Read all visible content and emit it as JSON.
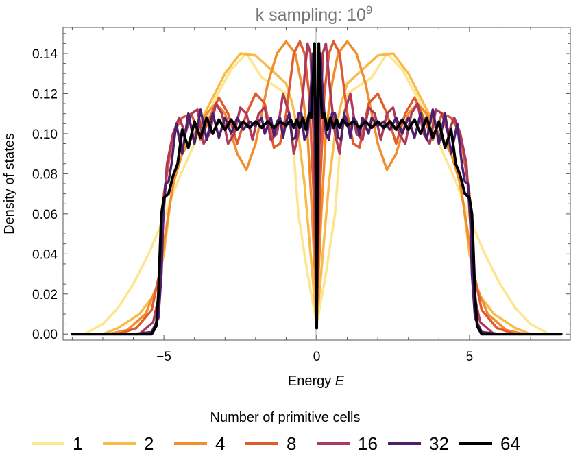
{
  "chart_data": {
    "type": "line",
    "title": "k sampling: 10",
    "title_superscript": "9",
    "xlabel": "Energy ",
    "xlabel_italic": "E",
    "ylabel": "Density of states",
    "xlim": [
      -8.3,
      8.3
    ],
    "ylim": [
      -0.003,
      0.153
    ],
    "x_ticks": [
      -5,
      0,
      5
    ],
    "x_tick_labels": [
      "−5",
      "0",
      "5"
    ],
    "y_ticks": [
      0.0,
      0.02,
      0.04,
      0.06,
      0.08,
      0.1,
      0.12,
      0.14
    ],
    "y_tick_labels": [
      "0.00",
      "0.02",
      "0.04",
      "0.06",
      "0.08",
      "0.10",
      "0.12",
      "0.14"
    ],
    "grid": false,
    "legend_title": "Number of primitive cells",
    "legend_position": "bottom",
    "series": [
      {
        "name": "1",
        "color": "#fde68e",
        "points": [
          [
            0,
            0.005
          ],
          [
            0.3,
            0.03
          ],
          [
            0.6,
            0.06
          ],
          [
            0.8,
            0.1
          ],
          [
            1.0,
            0.12
          ],
          [
            1.3,
            0.123
          ],
          [
            1.8,
            0.128
          ],
          [
            2.3,
            0.14
          ],
          [
            2.8,
            0.132
          ],
          [
            3.3,
            0.118
          ],
          [
            4.0,
            0.095
          ],
          [
            4.5,
            0.078
          ],
          [
            5.0,
            0.058
          ],
          [
            5.5,
            0.04
          ],
          [
            6.0,
            0.025
          ],
          [
            6.5,
            0.013
          ],
          [
            7.0,
            0.005
          ],
          [
            7.6,
            0.0
          ],
          [
            8.0,
            0.0
          ]
        ]
      },
      {
        "name": "2",
        "color": "#f8bb4a",
        "points": [
          [
            0,
            0.005
          ],
          [
            0.2,
            0.04
          ],
          [
            0.4,
            0.075
          ],
          [
            0.6,
            0.1
          ],
          [
            0.8,
            0.115
          ],
          [
            1.0,
            0.125
          ],
          [
            1.5,
            0.132
          ],
          [
            2.0,
            0.139
          ],
          [
            2.5,
            0.14
          ],
          [
            3.0,
            0.13
          ],
          [
            3.5,
            0.115
          ],
          [
            4.0,
            0.1
          ],
          [
            4.5,
            0.09
          ],
          [
            4.8,
            0.065
          ],
          [
            5.0,
            0.04
          ],
          [
            5.3,
            0.02
          ],
          [
            5.8,
            0.01
          ],
          [
            6.5,
            0.003
          ],
          [
            7.0,
            0.0
          ],
          [
            8.0,
            0.0
          ]
        ]
      },
      {
        "name": "4",
        "color": "#f18d2b",
        "points": [
          [
            0,
            0.01
          ],
          [
            0.15,
            0.06
          ],
          [
            0.3,
            0.1
          ],
          [
            0.5,
            0.125
          ],
          [
            0.7,
            0.14
          ],
          [
            1.0,
            0.146
          ],
          [
            1.3,
            0.14
          ],
          [
            1.6,
            0.125
          ],
          [
            2.0,
            0.095
          ],
          [
            2.3,
            0.082
          ],
          [
            2.6,
            0.09
          ],
          [
            3.0,
            0.11
          ],
          [
            3.3,
            0.115
          ],
          [
            3.6,
            0.11
          ],
          [
            4.0,
            0.1
          ],
          [
            4.4,
            0.09
          ],
          [
            4.7,
            0.075
          ],
          [
            5.0,
            0.045
          ],
          [
            5.2,
            0.025
          ],
          [
            5.6,
            0.01
          ],
          [
            6.2,
            0.002
          ],
          [
            6.8,
            0.0
          ],
          [
            8.0,
            0.0
          ]
        ]
      },
      {
        "name": "8",
        "color": "#e05b2e",
        "points": [
          [
            0,
            0.01
          ],
          [
            0.1,
            0.07
          ],
          [
            0.25,
            0.12
          ],
          [
            0.4,
            0.14
          ],
          [
            0.55,
            0.146
          ],
          [
            0.75,
            0.14
          ],
          [
            1.0,
            0.11
          ],
          [
            1.2,
            0.095
          ],
          [
            1.4,
            0.093
          ],
          [
            1.7,
            0.115
          ],
          [
            2.0,
            0.12
          ],
          [
            2.3,
            0.11
          ],
          [
            2.6,
            0.095
          ],
          [
            2.9,
            0.11
          ],
          [
            3.2,
            0.118
          ],
          [
            3.5,
            0.108
          ],
          [
            3.8,
            0.097
          ],
          [
            4.1,
            0.11
          ],
          [
            4.4,
            0.108
          ],
          [
            4.7,
            0.1
          ],
          [
            5.0,
            0.07
          ],
          [
            5.15,
            0.03
          ],
          [
            5.4,
            0.012
          ],
          [
            5.9,
            0.003
          ],
          [
            6.5,
            0.0
          ],
          [
            8.0,
            0.0
          ]
        ]
      },
      {
        "name": "16",
        "color": "#ad3a5a",
        "points": [
          [
            0,
            0.01
          ],
          [
            0.08,
            0.09
          ],
          [
            0.2,
            0.14
          ],
          [
            0.3,
            0.145
          ],
          [
            0.45,
            0.12
          ],
          [
            0.6,
            0.1
          ],
          [
            0.75,
            0.09
          ],
          [
            0.9,
            0.11
          ],
          [
            1.1,
            0.12
          ],
          [
            1.3,
            0.1
          ],
          [
            1.5,
            0.097
          ],
          [
            1.7,
            0.113
          ],
          [
            1.9,
            0.11
          ],
          [
            2.1,
            0.097
          ],
          [
            2.3,
            0.11
          ],
          [
            2.5,
            0.113
          ],
          [
            2.7,
            0.1
          ],
          [
            2.9,
            0.095
          ],
          [
            3.1,
            0.11
          ],
          [
            3.3,
            0.115
          ],
          [
            3.5,
            0.1
          ],
          [
            3.7,
            0.095
          ],
          [
            3.9,
            0.112
          ],
          [
            4.1,
            0.11
          ],
          [
            4.3,
            0.1
          ],
          [
            4.5,
            0.108
          ],
          [
            4.7,
            0.1
          ],
          [
            4.9,
            0.085
          ],
          [
            5.05,
            0.05
          ],
          [
            5.15,
            0.02
          ],
          [
            5.35,
            0.006
          ],
          [
            5.8,
            0.0
          ],
          [
            8.0,
            0.0
          ]
        ]
      },
      {
        "name": "32",
        "color": "#4e1f6d",
        "points": [
          [
            0,
            0.005
          ],
          [
            0.05,
            0.1
          ],
          [
            0.12,
            0.14
          ],
          [
            0.2,
            0.12
          ],
          [
            0.3,
            0.1
          ],
          [
            0.4,
            0.097
          ],
          [
            0.5,
            0.11
          ],
          [
            0.6,
            0.11
          ],
          [
            0.7,
            0.098
          ],
          [
            0.8,
            0.097
          ],
          [
            0.9,
            0.11
          ],
          [
            1.0,
            0.106
          ],
          [
            1.1,
            0.098
          ],
          [
            1.2,
            0.108
          ],
          [
            1.3,
            0.106
          ],
          [
            1.4,
            0.099
          ],
          [
            1.5,
            0.108
          ],
          [
            1.6,
            0.104
          ],
          [
            1.7,
            0.1
          ],
          [
            1.8,
            0.108
          ],
          [
            2.0,
            0.104
          ],
          [
            2.2,
            0.106
          ],
          [
            2.4,
            0.102
          ],
          [
            2.6,
            0.108
          ],
          [
            2.8,
            0.1
          ],
          [
            3.0,
            0.108
          ],
          [
            3.2,
            0.098
          ],
          [
            3.4,
            0.11
          ],
          [
            3.6,
            0.097
          ],
          [
            3.8,
            0.112
          ],
          [
            4.0,
            0.095
          ],
          [
            4.2,
            0.11
          ],
          [
            4.4,
            0.09
          ],
          [
            4.6,
            0.105
          ],
          [
            4.75,
            0.085
          ],
          [
            4.85,
            0.076
          ],
          [
            4.95,
            0.075
          ],
          [
            5.02,
            0.06
          ],
          [
            5.08,
            0.03
          ],
          [
            5.18,
            0.008
          ],
          [
            5.4,
            0.001
          ],
          [
            6.0,
            0.0
          ],
          [
            8.0,
            0.0
          ]
        ]
      },
      {
        "name": "64",
        "color": "#000000",
        "points": [
          [
            0,
            0.003
          ],
          [
            0.03,
            0.1
          ],
          [
            0.07,
            0.145
          ],
          [
            0.12,
            0.125
          ],
          [
            0.18,
            0.108
          ],
          [
            0.25,
            0.11
          ],
          [
            0.35,
            0.102
          ],
          [
            0.45,
            0.108
          ],
          [
            0.55,
            0.103
          ],
          [
            0.65,
            0.107
          ],
          [
            0.75,
            0.103
          ],
          [
            0.85,
            0.107
          ],
          [
            1.0,
            0.104
          ],
          [
            1.2,
            0.106
          ],
          [
            1.4,
            0.103
          ],
          [
            1.6,
            0.106
          ],
          [
            1.8,
            0.103
          ],
          [
            2.0,
            0.106
          ],
          [
            2.2,
            0.103
          ],
          [
            2.4,
            0.106
          ],
          [
            2.6,
            0.102
          ],
          [
            2.8,
            0.107
          ],
          [
            3.0,
            0.102
          ],
          [
            3.2,
            0.107
          ],
          [
            3.4,
            0.1
          ],
          [
            3.6,
            0.108
          ],
          [
            3.8,
            0.098
          ],
          [
            4.0,
            0.106
          ],
          [
            4.2,
            0.093
          ],
          [
            4.4,
            0.102
          ],
          [
            4.55,
            0.085
          ],
          [
            4.7,
            0.079
          ],
          [
            4.85,
            0.07
          ],
          [
            5.0,
            0.068
          ],
          [
            5.08,
            0.06
          ],
          [
            5.12,
            0.045
          ],
          [
            5.18,
            0.02
          ],
          [
            5.25,
            0.004
          ],
          [
            5.4,
            0.0
          ],
          [
            6.0,
            0.0
          ],
          [
            8.0,
            0.0
          ]
        ]
      }
    ]
  }
}
